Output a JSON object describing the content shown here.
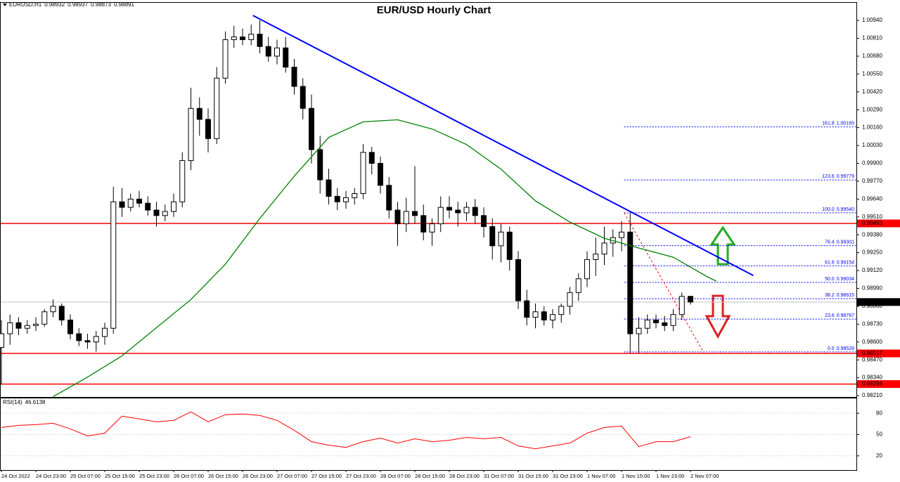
{
  "chart_data": [
    {
      "type": "candlestick",
      "title": "EUR/USD Hourly Chart",
      "symbol": "EURUSD,H1",
      "categories": [
        "24 Oct 2022",
        null,
        null,
        null,
        "24 Oct 23:00",
        null,
        null,
        null,
        "25 Oct 07:00",
        null,
        null,
        null,
        "25 Oct 15:00",
        null,
        null,
        null,
        "25 Oct 23:00",
        null,
        null,
        null,
        "26 Oct 07:00",
        null,
        null,
        null,
        "26 Oct 15:00",
        null,
        null,
        null,
        "26 Oct 23:00",
        null,
        null,
        null,
        "27 Oct 07:00",
        null,
        null,
        null,
        "27 Oct 15:00",
        null,
        null,
        null,
        "27 Oct 23:00",
        null,
        null,
        null,
        "28 Oct 07:00",
        null,
        null,
        null,
        "28 Oct 15:00",
        null,
        null,
        null,
        "28 Oct 23:00",
        null,
        null,
        null,
        "31 Oct 07:00",
        null,
        null,
        null,
        "31 Oct 15:00",
        null,
        null,
        null,
        "31 Oct 23:00",
        null,
        null,
        null,
        "1 Nov 07:00",
        null,
        null,
        null,
        "1 Nov 15:00",
        null,
        null,
        null,
        "1 Nov 23:00",
        null,
        null,
        null,
        "2 Nov 07:00"
      ],
      "open": [
        0.9856,
        0.9866,
        0.9874,
        0.987,
        0.9872,
        0.9873,
        0.9882,
        0.9886,
        0.9876,
        0.9866,
        0.9861,
        0.986,
        0.9864,
        0.987,
        0.9962,
        0.9958,
        0.9964,
        0.9961,
        0.9956,
        0.9952,
        0.9955,
        0.9962,
        0.9992,
        1.003,
        1.0022,
        1.0008,
        1.0052,
        1.008,
        1.0082,
        1.008,
        1.0084,
        1.0075,
        1.0068,
        1.0074,
        1.006,
        1.0046,
        1.003,
        1.0,
        0.9978,
        0.9966,
        0.9962,
        0.9965,
        0.9968,
        0.9998,
        0.999,
        0.9974,
        0.9956,
        0.9946,
        0.9955,
        0.9952,
        0.994,
        0.9946,
        0.9958,
        0.9956,
        0.9954,
        0.9958,
        0.9952,
        0.9944,
        0.993,
        0.994,
        0.992,
        0.989,
        0.9878,
        0.9882,
        0.9876,
        0.988,
        0.9886,
        0.9896,
        0.9906,
        0.992,
        0.9924,
        0.9932,
        0.9936,
        0.994,
        0.9866,
        0.987,
        0.9876,
        0.9874,
        0.9872,
        0.988,
        0.98932
      ],
      "high": [
        0.9876,
        0.988,
        0.9878,
        0.9876,
        0.9878,
        0.9884,
        0.9891,
        0.9888,
        0.988,
        0.987,
        0.9866,
        0.9868,
        0.9874,
        0.9973,
        0.9972,
        0.9968,
        0.997,
        0.9966,
        0.9962,
        0.996,
        0.9968,
        0.9998,
        1.0045,
        1.0038,
        1.003,
        1.006,
        1.0086,
        1.009,
        1.0088,
        1.0091,
        1.0094,
        1.0082,
        1.008,
        1.0082,
        1.0066,
        1.0052,
        1.004,
        1.001,
        0.9986,
        0.9972,
        0.997,
        0.9972,
        1.0004,
        1.0002,
        0.9995,
        0.998,
        0.9962,
        0.9965,
        0.9988,
        0.996,
        0.995,
        0.9966,
        0.9966,
        0.9962,
        0.9962,
        0.9964,
        0.9958,
        0.995,
        0.9946,
        0.9944,
        0.9926,
        0.9898,
        0.9888,
        0.9886,
        0.9884,
        0.9888,
        0.99,
        0.991,
        0.9926,
        0.9936,
        0.9944,
        0.9942,
        0.9948,
        0.9954,
        0.9878,
        0.988,
        0.988,
        0.9879,
        0.9884,
        0.9896,
        0.98937
      ],
      "low": [
        0.9829,
        0.9858,
        0.9865,
        0.9866,
        0.9868,
        0.9871,
        0.9878,
        0.9872,
        0.9862,
        0.9857,
        0.9855,
        0.9853,
        0.9858,
        0.9866,
        0.9951,
        0.9955,
        0.9958,
        0.9952,
        0.9944,
        0.9948,
        0.9951,
        0.9958,
        0.9985,
        1.001,
        0.9998,
        1.0004,
        1.0048,
        1.0074,
        1.0076,
        1.0076,
        1.007,
        1.0064,
        1.0062,
        1.0056,
        1.004,
        1.0022,
        0.999,
        0.9968,
        0.996,
        0.9956,
        0.9957,
        0.996,
        0.9964,
        0.9982,
        0.9968,
        0.995,
        0.993,
        0.994,
        0.9946,
        0.9934,
        0.993,
        0.994,
        0.995,
        0.9944,
        0.9948,
        0.9946,
        0.9936,
        0.992,
        0.9918,
        0.9912,
        0.9884,
        0.9872,
        0.987,
        0.9872,
        0.987,
        0.9874,
        0.988,
        0.989,
        0.99,
        0.9908,
        0.9916,
        0.9922,
        0.9926,
        0.9852,
        0.9852,
        0.9866,
        0.987,
        0.9868,
        0.9868,
        0.9876,
        0.98873
      ],
      "close": [
        0.9866,
        0.9874,
        0.987,
        0.9872,
        0.9873,
        0.9882,
        0.9886,
        0.9876,
        0.9866,
        0.9861,
        0.986,
        0.9864,
        0.987,
        0.9962,
        0.9958,
        0.9964,
        0.9961,
        0.9956,
        0.9952,
        0.9955,
        0.9962,
        0.9992,
        1.003,
        1.0022,
        1.0008,
        1.0052,
        1.008,
        1.0082,
        1.008,
        1.0084,
        1.0075,
        1.0068,
        1.0074,
        1.006,
        1.0046,
        1.003,
        1.0,
        0.9978,
        0.9966,
        0.9962,
        0.9965,
        0.9968,
        0.9998,
        0.999,
        0.9974,
        0.9956,
        0.9946,
        0.9955,
        0.9952,
        0.994,
        0.9946,
        0.9958,
        0.9956,
        0.9954,
        0.9958,
        0.9952,
        0.9944,
        0.993,
        0.994,
        0.992,
        0.989,
        0.9878,
        0.9882,
        0.9876,
        0.988,
        0.9886,
        0.9896,
        0.9906,
        0.992,
        0.9924,
        0.9932,
        0.9936,
        0.994,
        0.9866,
        0.987,
        0.9876,
        0.9874,
        0.9872,
        0.988,
        0.98932,
        0.98891
      ],
      "up_color": "#ffffff",
      "down_color": "#000000",
      "ylim": [
        0.982,
        1.01063
      ],
      "yticks": [
        {
          "value": 1.0094,
          "label": "1.00940"
        },
        {
          "value": 1.0081,
          "label": "1.00810"
        },
        {
          "value": 1.0068,
          "label": "1.00680"
        },
        {
          "value": 1.0055,
          "label": "1.00550"
        },
        {
          "value": 1.0042,
          "label": "1.00420"
        },
        {
          "value": 1.0029,
          "label": "1.00290"
        },
        {
          "value": 1.0016,
          "label": "1.00160"
        },
        {
          "value": 1.0003,
          "label": "1.00030"
        },
        {
          "value": 0.999,
          "label": "0.99900"
        },
        {
          "value": 0.9977,
          "label": "0.99770"
        },
        {
          "value": 0.9964,
          "label": "0.99640"
        },
        {
          "value": 0.9951,
          "label": "0.99510"
        },
        {
          "value": 0.9938,
          "label": "0.99380"
        },
        {
          "value": 0.9925,
          "label": "0.99250"
        },
        {
          "value": 0.9912,
          "label": "0.99120"
        },
        {
          "value": 0.9899,
          "label": "0.98990"
        },
        {
          "value": 0.9886,
          "label": "0.98860"
        },
        {
          "value": 0.9873,
          "label": "0.98730"
        },
        {
          "value": 0.986,
          "label": "0.98600"
        },
        {
          "value": 0.9847,
          "label": "0.98470"
        },
        {
          "value": 0.9834,
          "label": "0.98340"
        },
        {
          "value": 0.9821,
          "label": "0.98210"
        }
      ],
      "ma": {
        "color": "#008000",
        "x": [
          6,
          10,
          14,
          18,
          22,
          26,
          30,
          34,
          38,
          42,
          46,
          50,
          54,
          58,
          62,
          66,
          70,
          74,
          78,
          82,
          83
        ],
        "values": [
          0.98202,
          0.98345,
          0.98499,
          0.98704,
          0.98909,
          0.99166,
          0.99499,
          0.99807,
          1.00089,
          1.00202,
          1.00217,
          1.0015,
          1.00037,
          0.99858,
          0.99627,
          0.99473,
          0.99355,
          0.99284,
          0.99217,
          0.99073,
          0.99043
        ]
      },
      "trendline": {
        "color": "#0000ff",
        "x": [
          29.2,
          87.3
        ],
        "y": [
          1.00976,
          0.99084
        ]
      },
      "levels": [
        0.99463,
        0.98517,
        0.98294
      ],
      "level_color": "#ff0000",
      "fib": {
        "color": "#0000ff",
        "diagonal_color": "#ff0000",
        "diagonal_x": [
          72.3,
          81.5
        ],
        "start_x": 72.3,
        "levels": [
          {
            "ratio": "161.8",
            "price": 1.00165
          },
          {
            "ratio": "123.6",
            "price": 0.99779
          },
          {
            "ratio": "100.0",
            "price": {
              "value": 0.9954,
              "label": "0.99540"
            }
          },
          {
            "ratio": "76.4",
            "price": 0.99301
          },
          {
            "ratio": "61.8",
            "price": 0.99154
          },
          {
            "ratio": "50.0",
            "price": 0.99034
          },
          {
            "ratio": "38.2",
            "price": 0.98915
          },
          {
            "ratio": "23.6",
            "price": 0.98767
          },
          {
            "ratio": "0.0",
            "price": 0.98528
          }
        ]
      }
    },
    {
      "type": "line",
      "name": "RSI(14)",
      "last": 46.6138,
      "color": "#ff0000",
      "x": [
        0,
        2,
        4,
        6,
        8,
        10,
        12,
        14,
        16,
        18,
        20,
        22,
        24,
        26,
        28,
        30,
        32,
        34,
        36,
        38,
        40,
        42,
        44,
        46,
        48,
        50,
        52,
        54,
        56,
        58,
        60,
        62,
        64,
        66,
        68,
        70,
        72,
        74,
        76,
        78,
        80
      ],
      "values": [
        60,
        63,
        64,
        66,
        58,
        48,
        52,
        76,
        72,
        68,
        70,
        82,
        68,
        78,
        79,
        77,
        70,
        56,
        40,
        35,
        32,
        40,
        45,
        38,
        44,
        40,
        42,
        46,
        44,
        46,
        34,
        30,
        34,
        38,
        52,
        60,
        62,
        33,
        40,
        40,
        47
      ],
      "ylim": [
        0,
        100
      ],
      "yticks": [
        20,
        50,
        80
      ]
    }
  ]
}
